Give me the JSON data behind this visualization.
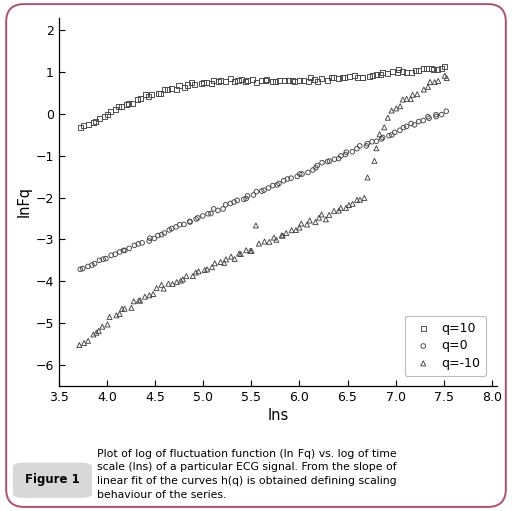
{
  "xlabel": "lns",
  "ylabel": "lnFq",
  "xlim": [
    3.5,
    8.05
  ],
  "ylim": [
    -6.5,
    2.3
  ],
  "xticks": [
    3.5,
    4.0,
    4.5,
    5.0,
    5.5,
    6.0,
    6.5,
    7.0,
    7.5,
    8.0
  ],
  "yticks": [
    -6,
    -5,
    -4,
    -3,
    -2,
    -1,
    0,
    1,
    2
  ],
  "legend_labels": [
    "q=10",
    "q=0",
    "q=-10"
  ],
  "border_color": "#b05070",
  "caption_label": "Figure 1",
  "marker_color": "#444444",
  "q10_x": [
    3.72,
    3.76,
    3.8,
    3.84,
    3.88,
    3.92,
    3.96,
    4.0,
    4.04,
    4.08,
    4.12,
    4.16,
    4.2,
    4.24,
    4.28,
    4.32,
    4.36,
    4.4,
    4.44,
    4.48,
    4.52,
    4.56,
    4.6,
    4.64,
    4.68,
    4.72,
    4.76,
    4.8,
    4.84,
    4.88,
    4.92,
    4.96,
    5.0,
    5.04,
    5.08,
    5.12,
    5.16,
    5.2,
    5.24,
    5.28,
    5.32,
    5.36,
    5.4,
    5.44,
    5.48,
    5.52,
    5.56,
    5.6,
    5.64,
    5.68,
    5.72,
    5.76,
    5.8,
    5.84,
    5.88,
    5.92,
    5.96,
    6.0,
    6.04,
    6.08,
    6.12,
    6.16,
    6.2,
    6.24,
    6.28,
    6.32,
    6.36,
    6.4,
    6.44,
    6.48,
    6.52,
    6.56,
    6.6,
    6.64,
    6.68,
    6.72,
    6.76,
    6.8,
    6.84,
    6.88,
    6.92,
    6.96,
    7.0,
    7.04,
    7.08,
    7.12,
    7.16,
    7.2,
    7.24,
    7.28,
    7.32,
    7.36,
    7.4,
    7.44,
    7.48,
    7.52
  ],
  "q10_y": [
    -0.32,
    -0.28,
    -0.24,
    -0.2,
    -0.15,
    -0.1,
    -0.05,
    0.01,
    0.06,
    0.1,
    0.14,
    0.18,
    0.22,
    0.26,
    0.3,
    0.34,
    0.37,
    0.4,
    0.43,
    0.46,
    0.49,
    0.52,
    0.55,
    0.57,
    0.6,
    0.62,
    0.64,
    0.66,
    0.68,
    0.7,
    0.72,
    0.74,
    0.75,
    0.77,
    0.78,
    0.79,
    0.8,
    0.8,
    0.8,
    0.8,
    0.8,
    0.8,
    0.8,
    0.8,
    0.8,
    0.8,
    0.8,
    0.8,
    0.8,
    0.8,
    0.8,
    0.8,
    0.8,
    0.8,
    0.8,
    0.8,
    0.8,
    0.8,
    0.8,
    0.8,
    0.82,
    0.82,
    0.82,
    0.83,
    0.83,
    0.85,
    0.85,
    0.86,
    0.86,
    0.87,
    0.88,
    0.88,
    0.88,
    0.89,
    0.9,
    0.92,
    0.93,
    0.94,
    0.95,
    0.97,
    0.98,
    0.99,
    1.0,
    1.0,
    1.01,
    1.02,
    1.03,
    1.04,
    1.05,
    1.06,
    1.07,
    1.08,
    1.09,
    1.1,
    1.11,
    1.12
  ],
  "q0_x": [
    3.72,
    3.76,
    3.8,
    3.84,
    3.88,
    3.92,
    3.96,
    4.0,
    4.04,
    4.08,
    4.12,
    4.16,
    4.2,
    4.24,
    4.28,
    4.32,
    4.36,
    4.4,
    4.44,
    4.48,
    4.52,
    4.56,
    4.6,
    4.64,
    4.68,
    4.72,
    4.76,
    4.8,
    4.84,
    4.88,
    4.92,
    4.96,
    5.0,
    5.04,
    5.08,
    5.12,
    5.16,
    5.2,
    5.24,
    5.28,
    5.32,
    5.36,
    5.4,
    5.44,
    5.48,
    5.52,
    5.56,
    5.6,
    5.64,
    5.68,
    5.72,
    5.76,
    5.8,
    5.84,
    5.88,
    5.92,
    5.96,
    6.0,
    6.04,
    6.08,
    6.12,
    6.16,
    6.2,
    6.24,
    6.28,
    6.32,
    6.36,
    6.4,
    6.44,
    6.48,
    6.52,
    6.56,
    6.6,
    6.64,
    6.68,
    6.72,
    6.76,
    6.8,
    6.84,
    6.88,
    6.92,
    6.96,
    7.0,
    7.04,
    7.08,
    7.12,
    7.16,
    7.2,
    7.24,
    7.28,
    7.32,
    7.36,
    7.4,
    7.44,
    7.48,
    7.52
  ],
  "q0_y": [
    -3.72,
    -3.68,
    -3.64,
    -3.6,
    -3.56,
    -3.52,
    -3.48,
    -3.44,
    -3.4,
    -3.36,
    -3.32,
    -3.28,
    -3.24,
    -3.2,
    -3.16,
    -3.12,
    -3.08,
    -3.04,
    -3.0,
    -2.96,
    -2.92,
    -2.88,
    -2.84,
    -2.8,
    -2.76,
    -2.72,
    -2.68,
    -2.64,
    -2.6,
    -2.56,
    -2.52,
    -2.48,
    -2.44,
    -2.4,
    -2.36,
    -2.32,
    -2.28,
    -2.24,
    -2.2,
    -2.16,
    -2.12,
    -2.08,
    -2.04,
    -2.0,
    -1.96,
    -1.92,
    -1.88,
    -1.84,
    -1.8,
    -1.76,
    -1.72,
    -1.68,
    -1.64,
    -1.6,
    -1.56,
    -1.52,
    -1.48,
    -1.44,
    -1.4,
    -1.36,
    -1.32,
    -1.28,
    -1.24,
    -1.2,
    -1.16,
    -1.12,
    -1.08,
    -1.04,
    -1.0,
    -0.96,
    -0.92,
    -0.88,
    -0.84,
    -0.8,
    -0.76,
    -0.72,
    -0.68,
    -0.64,
    -0.6,
    -0.56,
    -0.52,
    -0.48,
    -0.44,
    -0.4,
    -0.36,
    -0.32,
    -0.28,
    -0.24,
    -0.2,
    -0.16,
    -0.12,
    -0.08,
    -0.04,
    0.0,
    0.04,
    0.08
  ],
  "qn10_x": [
    3.72,
    3.76,
    3.8,
    3.84,
    3.88,
    3.92,
    3.96,
    4.0,
    4.04,
    4.08,
    4.12,
    4.16,
    4.2,
    4.24,
    4.28,
    4.32,
    4.36,
    4.4,
    4.44,
    4.48,
    4.52,
    4.56,
    4.6,
    4.64,
    4.68,
    4.72,
    4.76,
    4.8,
    4.84,
    4.88,
    4.92,
    4.96,
    5.0,
    5.04,
    5.08,
    5.12,
    5.16,
    5.2,
    5.24,
    5.28,
    5.32,
    5.36,
    5.4,
    5.44,
    5.48,
    5.52,
    5.56,
    5.6,
    5.64,
    5.68,
    5.72,
    5.76,
    5.8,
    5.84,
    5.88,
    5.92,
    5.96,
    6.0,
    6.04,
    6.08,
    6.12,
    6.16,
    6.2,
    6.24,
    6.28,
    6.32,
    6.36,
    6.4,
    6.44,
    6.48,
    6.52,
    6.56,
    6.6,
    6.64,
    6.68,
    6.72,
    6.76,
    6.8,
    6.84,
    6.88,
    6.92,
    6.96,
    7.0,
    7.04,
    7.08,
    7.12,
    7.16,
    7.2,
    7.24,
    7.28,
    7.32,
    7.36,
    7.4,
    7.44,
    7.48,
    7.52
  ],
  "qn10_y": [
    -5.52,
    -5.44,
    -5.36,
    -5.28,
    -5.2,
    -5.13,
    -5.06,
    -4.99,
    -4.92,
    -4.85,
    -4.78,
    -4.72,
    -4.66,
    -4.6,
    -4.54,
    -4.48,
    -4.42,
    -4.36,
    -4.3,
    -4.25,
    -4.2,
    -4.16,
    -4.12,
    -4.08,
    -4.04,
    -4.0,
    -3.96,
    -3.92,
    -3.88,
    -3.84,
    -3.8,
    -3.76,
    -3.72,
    -3.68,
    -3.64,
    -3.6,
    -3.56,
    -3.52,
    -3.48,
    -3.44,
    -3.4,
    -3.36,
    -3.32,
    -3.28,
    -3.24,
    -3.2,
    -2.6,
    -3.1,
    -3.06,
    -3.02,
    -2.98,
    -2.94,
    -2.9,
    -2.86,
    -2.82,
    -2.78,
    -2.74,
    -2.7,
    -2.66,
    -2.62,
    -2.58,
    -2.54,
    -2.5,
    -2.46,
    -2.42,
    -2.38,
    -2.34,
    -2.3,
    -2.26,
    -2.22,
    -2.18,
    -2.14,
    -2.1,
    -2.06,
    -2.02,
    -1.5,
    -1.1,
    -0.8,
    -0.5,
    -0.3,
    -0.1,
    0.0,
    0.1,
    0.2,
    0.3,
    0.38,
    0.44,
    0.5,
    0.55,
    0.6,
    0.65,
    0.7,
    0.75,
    0.8,
    0.88,
    0.95
  ]
}
